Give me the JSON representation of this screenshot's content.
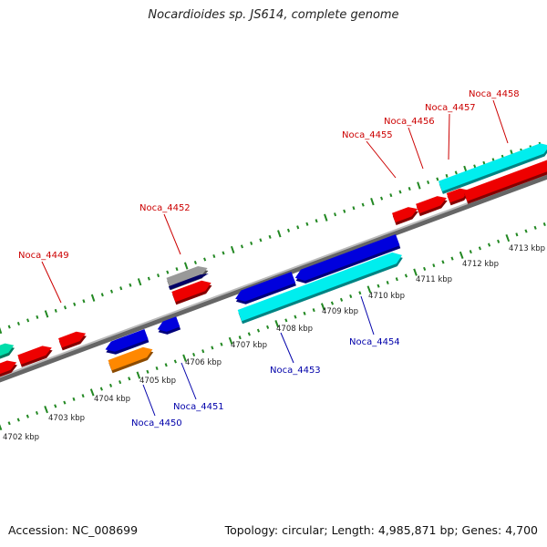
{
  "title": "Nocardioides sp. JS614, complete genome",
  "accession": "Accession: NC_008699",
  "topology": "Topology: circular; Length: 4,985,871 bp; Genes: 4,700",
  "colors": {
    "forward_label": "#cc0000",
    "reverse_label": "#0000aa",
    "red": "#ee0000",
    "blue": "#0000dd",
    "cyan": "#00eeee",
    "orange": "#ff8800",
    "teal": "#00ddaa",
    "gray": "#999999",
    "ticks": "#228822",
    "backbone": "#888888"
  },
  "kbp_labels": [
    "4702 kbp",
    "4703 kbp",
    "4704 kbp",
    "4705 kbp",
    "4706 kbp",
    "4707 kbp",
    "4708 kbp",
    "4709 kbp",
    "4710 kbp",
    "4711 kbp",
    "4712 kbp",
    "4713 kbp"
  ],
  "forward_gene_labels": [
    "Noca_4449",
    "Noca_4452",
    "Noca_4455",
    "Noca_4456",
    "Noca_4457",
    "Noca_4458"
  ],
  "reverse_gene_labels": [
    "Noca_4450",
    "Noca_4451",
    "Noca_4453",
    "Noca_4454"
  ],
  "features": [
    {
      "id": "f1",
      "color": "teal"
    },
    {
      "id": "f2",
      "color": "red"
    },
    {
      "id": "f3",
      "color": "red"
    },
    {
      "id": "f4",
      "color": "red"
    },
    {
      "id": "f5",
      "color": "gray"
    },
    {
      "id": "f6",
      "color": "red"
    },
    {
      "id": "f7",
      "color": "red"
    },
    {
      "id": "f8",
      "color": "red"
    },
    {
      "id": "f9",
      "color": "red"
    },
    {
      "id": "f10",
      "color": "cyan"
    },
    {
      "id": "f11",
      "color": "red"
    },
    {
      "id": "r1",
      "color": "orange"
    },
    {
      "id": "r2",
      "color": "blue"
    },
    {
      "id": "r3",
      "color": "blue"
    },
    {
      "id": "r4",
      "color": "blue"
    },
    {
      "id": "r5",
      "color": "blue"
    },
    {
      "id": "r6",
      "color": "cyan"
    }
  ]
}
